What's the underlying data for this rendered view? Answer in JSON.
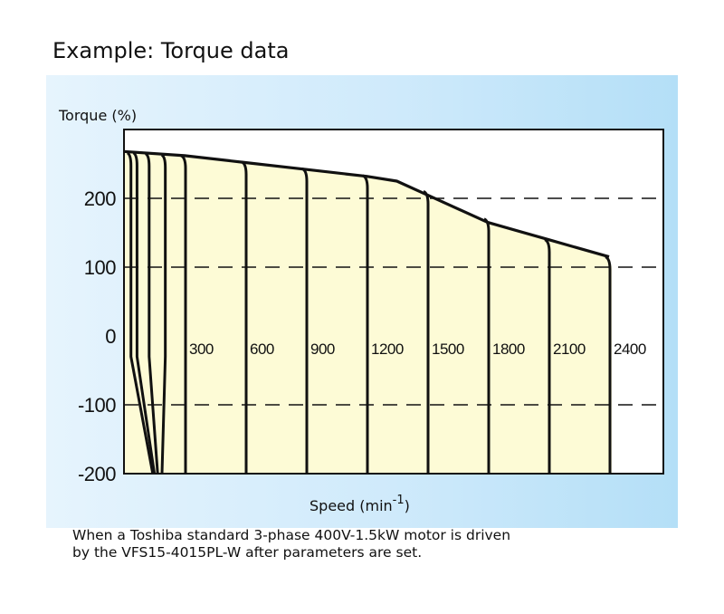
{
  "title": "Example: Torque data",
  "caption": {
    "line1": "When a Toshiba standard 3-phase 400V-1.5kW motor is driven",
    "line2": "by the VFS15-4015PL-W after parameters are set."
  },
  "colors": {
    "panel": "#cfeafb",
    "fill": "#fdfbd6",
    "curve": "#111111"
  },
  "chart_data": {
    "type": "area",
    "ylabel": "Torque (%)",
    "xlabel": "Speed (min",
    "xlabel_sup": "-1",
    "xlabel_close": ")",
    "ylim": [
      -200,
      300
    ],
    "yticks": [
      200,
      100,
      0,
      -100,
      -200
    ],
    "grid": "dashed at 200, 100, -100",
    "speed_labels": [
      "300",
      "600",
      "900",
      "1200",
      "1500",
      "1800",
      "2100",
      "2400"
    ],
    "envelope": {
      "x": [
        0,
        300,
        600,
        900,
        1200,
        1350,
        1500,
        1800,
        2100,
        2400
      ],
      "y": [
        268,
        262,
        252,
        242,
        232,
        225,
        205,
        165,
        140,
        115
      ]
    },
    "curves": [
      {
        "speed": 2400,
        "top_torque": 115
      },
      {
        "speed": 2100,
        "top_torque": 140
      },
      {
        "speed": 1800,
        "top_torque": 170
      },
      {
        "speed": 1500,
        "top_torque": 210
      },
      {
        "speed": 1200,
        "top_torque": 233
      },
      {
        "speed": 900,
        "top_torque": 243
      },
      {
        "speed": 600,
        "top_torque": 253
      },
      {
        "speed": 300,
        "top_torque": 262
      },
      {
        "speed": 200,
        "top_torque": 263
      },
      {
        "speed": 120,
        "top_torque": 265
      },
      {
        "speed": 60,
        "top_torque": 266
      },
      {
        "speed": 30,
        "top_torque": 266
      }
    ]
  }
}
